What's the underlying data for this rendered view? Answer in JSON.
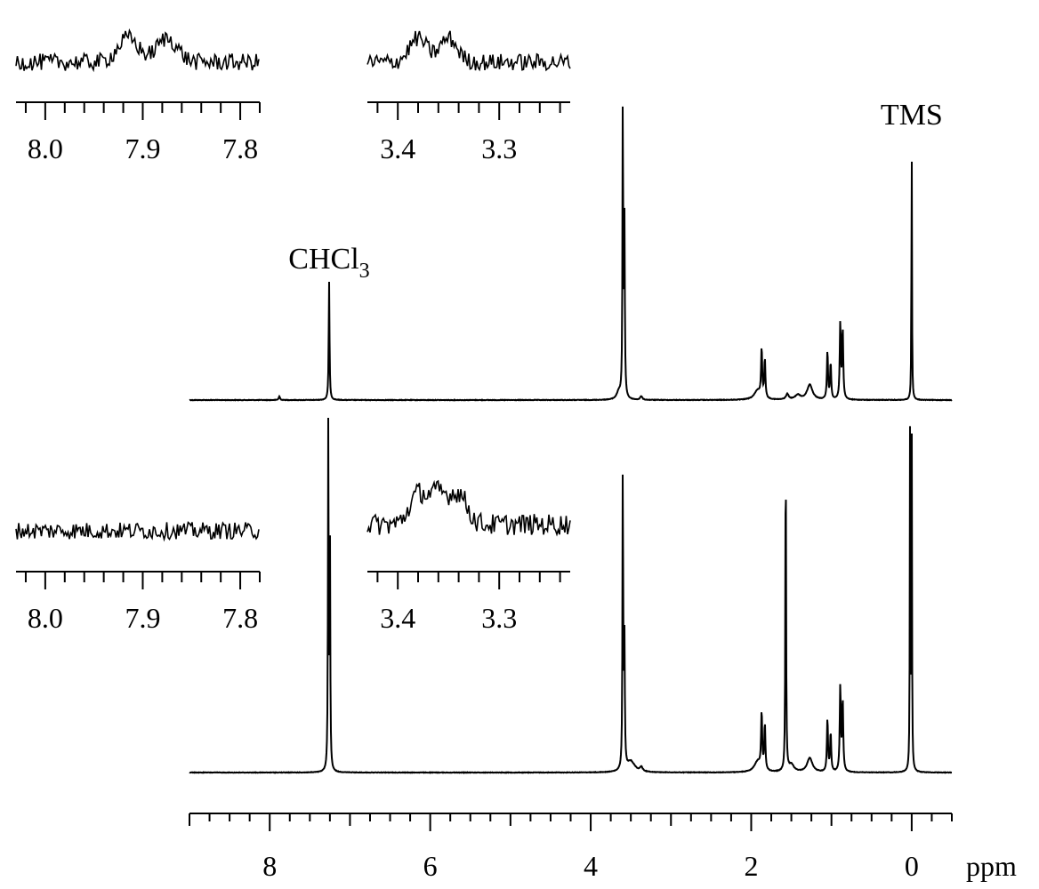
{
  "chart_data": {
    "type": "line",
    "xlabel": "ppm",
    "x_reversed": true,
    "xlim": [
      9.0,
      -0.5
    ],
    "x_ticks": [
      8,
      6,
      4,
      2,
      0
    ],
    "x_tick_labels": [
      "8",
      "6",
      "4",
      "2",
      "0"
    ],
    "grid": false,
    "annotations": [
      {
        "text": "CHCl",
        "sub": "3",
        "x": 7.26,
        "spectrum": "top"
      },
      {
        "text": "TMS",
        "x": 0.0,
        "spectrum": "top"
      }
    ],
    "series": [
      {
        "id": "top",
        "peaks": [
          {
            "x": 7.88,
            "h": 0.012,
            "w": 0.01
          },
          {
            "x": 7.26,
            "h": 0.39,
            "w": 0.006
          },
          {
            "x": 3.6,
            "h": 1.0,
            "w": 0.005
          },
          {
            "x": 3.58,
            "h": 0.58,
            "w": 0.006
          },
          {
            "x": 3.65,
            "h": 0.025,
            "w": 0.03
          },
          {
            "x": 3.37,
            "h": 0.012,
            "w": 0.015
          },
          {
            "x": 1.92,
            "h": 0.03,
            "w": 0.05
          },
          {
            "x": 1.87,
            "h": 0.16,
            "w": 0.008
          },
          {
            "x": 1.83,
            "h": 0.13,
            "w": 0.008
          },
          {
            "x": 1.55,
            "h": 0.018,
            "w": 0.02
          },
          {
            "x": 1.42,
            "h": 0.015,
            "w": 0.04
          },
          {
            "x": 1.27,
            "h": 0.05,
            "w": 0.04
          },
          {
            "x": 1.05,
            "h": 0.16,
            "w": 0.008
          },
          {
            "x": 1.01,
            "h": 0.12,
            "w": 0.008
          },
          {
            "x": 0.89,
            "h": 0.25,
            "w": 0.008
          },
          {
            "x": 0.86,
            "h": 0.23,
            "w": 0.008
          },
          {
            "x": 0.0,
            "h": 0.85,
            "w": 0.004
          }
        ]
      },
      {
        "id": "bottom",
        "peaks": [
          {
            "x": 7.27,
            "h": 1.0,
            "w": 0.005
          },
          {
            "x": 7.25,
            "h": 0.67,
            "w": 0.005
          },
          {
            "x": 3.6,
            "h": 0.88,
            "w": 0.005
          },
          {
            "x": 3.58,
            "h": 0.36,
            "w": 0.006
          },
          {
            "x": 3.5,
            "h": 0.03,
            "w": 0.06
          },
          {
            "x": 3.37,
            "h": 0.012,
            "w": 0.02
          },
          {
            "x": 1.92,
            "h": 0.03,
            "w": 0.05
          },
          {
            "x": 1.87,
            "h": 0.16,
            "w": 0.008
          },
          {
            "x": 1.83,
            "h": 0.13,
            "w": 0.008
          },
          {
            "x": 1.57,
            "h": 0.97,
            "w": 0.005
          },
          {
            "x": 1.5,
            "h": 0.02,
            "w": 0.04
          },
          {
            "x": 1.27,
            "h": 0.04,
            "w": 0.04
          },
          {
            "x": 1.05,
            "h": 0.15,
            "w": 0.008
          },
          {
            "x": 1.01,
            "h": 0.11,
            "w": 0.008
          },
          {
            "x": 0.89,
            "h": 0.24,
            "w": 0.008
          },
          {
            "x": 0.86,
            "h": 0.2,
            "w": 0.008
          },
          {
            "x": 0.02,
            "h": 1.0,
            "w": 0.004
          },
          {
            "x": 0.0,
            "h": 1.0,
            "w": 0.004
          }
        ]
      }
    ],
    "insets": [
      {
        "id": "top-left",
        "xlim": [
          8.03,
          7.78
        ],
        "ticks": [
          "8.0",
          "7.9",
          "7.8"
        ],
        "tick_values": [
          8.0,
          7.9,
          7.8
        ],
        "signal": "multiplet",
        "peaks": [
          7.915,
          7.875
        ]
      },
      {
        "id": "top-mid",
        "xlim": [
          3.43,
          3.23
        ],
        "ticks": [
          "3.4",
          "3.3"
        ],
        "tick_values": [
          3.4,
          3.3
        ],
        "signal": "multiplet",
        "peaks": [
          3.38,
          3.35
        ]
      },
      {
        "id": "bottom-left",
        "xlim": [
          8.03,
          7.78
        ],
        "ticks": [
          "8.0",
          "7.9",
          "7.8"
        ],
        "tick_values": [
          8.0,
          7.9,
          7.8
        ],
        "signal": "noise",
        "peaks": []
      },
      {
        "id": "bottom-mid",
        "xlim": [
          3.43,
          3.23
        ],
        "ticks": [
          "3.4",
          "3.3"
        ],
        "tick_values": [
          3.4,
          3.3
        ],
        "signal": "multiplet",
        "peaks": [
          3.38,
          3.36,
          3.34
        ]
      }
    ]
  }
}
